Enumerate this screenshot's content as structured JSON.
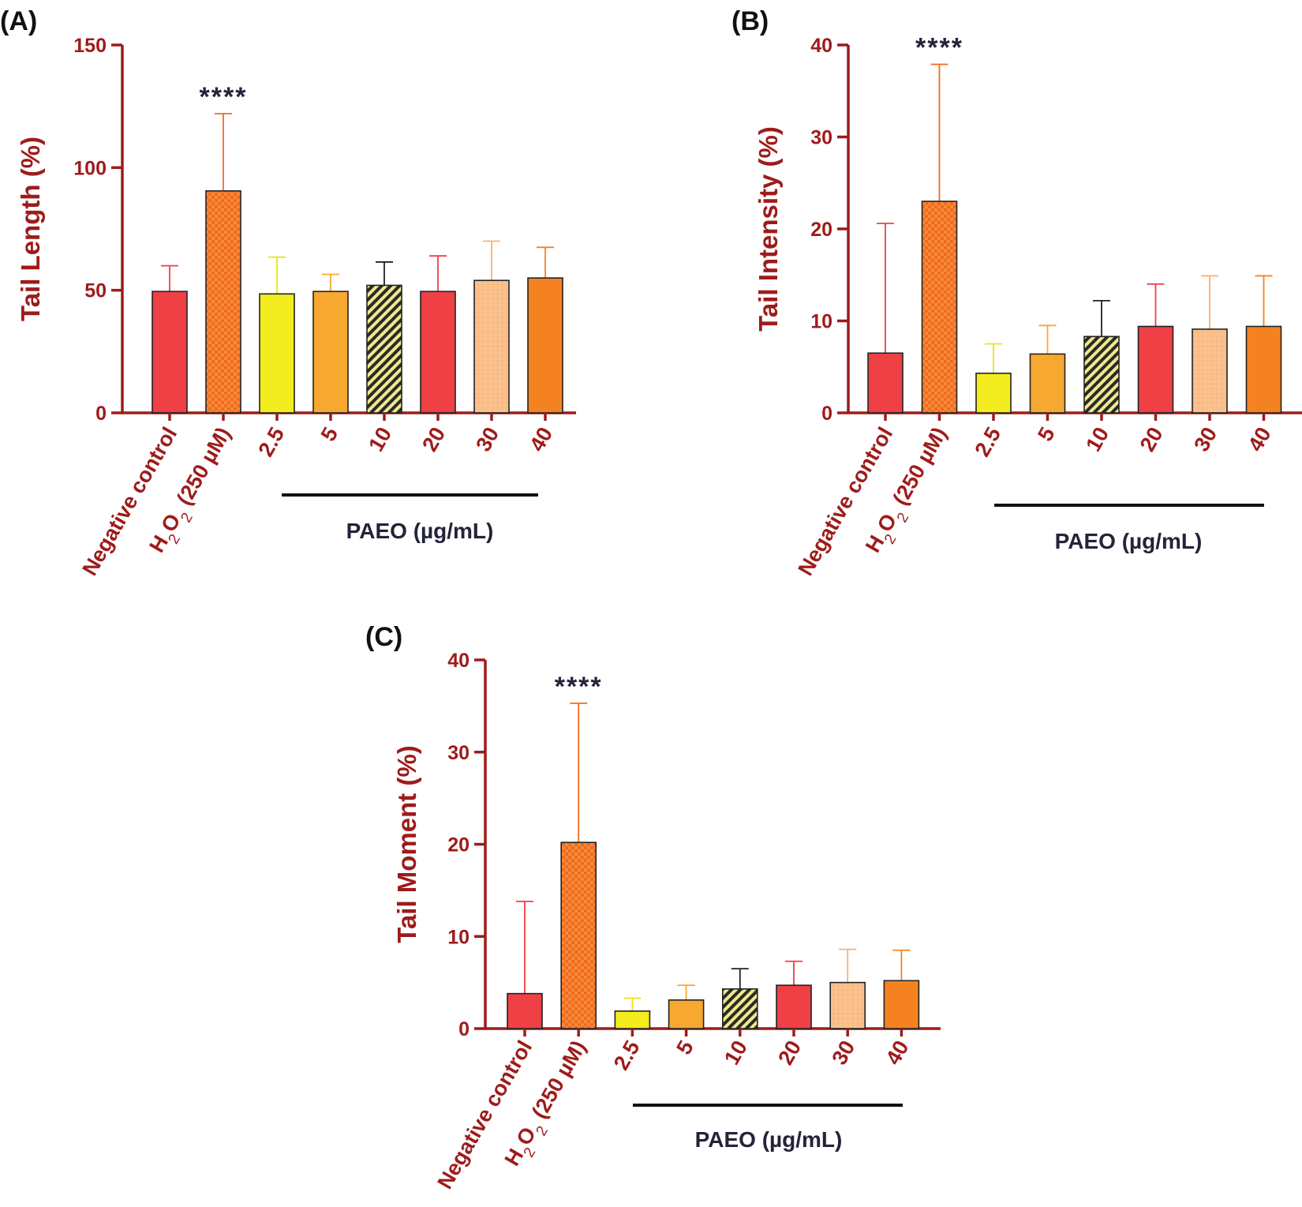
{
  "colors": {
    "axis": "#9e1b1b",
    "label_text": "#9e1b1b",
    "annotation": "#23233a",
    "red": "#ee4045",
    "dark_orange": "#f26b1d",
    "yellow": "#f3ec1f",
    "orange": "#f7a830",
    "hatch_fg": "#f1e98a",
    "hatch_bg": "#2a2a2a",
    "peach": "#fbc290",
    "deep_orange": "#f58220"
  },
  "chart_data": [
    {
      "type": "bar",
      "panel_label": "(A)",
      "ylabel": "Tail Length (%)",
      "ylim": [
        0,
        150
      ],
      "yticks": [
        "0",
        "50",
        "100",
        "150"
      ],
      "categories": [
        "Negative control",
        "H2O2 (250 µM)",
        "2.5",
        "5",
        "10",
        "20",
        "30",
        "40"
      ],
      "values": [
        49.5,
        90.5,
        48.5,
        49.5,
        52,
        49.5,
        54,
        55
      ],
      "errors": [
        10.5,
        31.5,
        15,
        7,
        9.5,
        14.5,
        16,
        12.5
      ],
      "significance": {
        "index": 1,
        "text": "****"
      },
      "group_label": "PAEO (µg/mL)"
    },
    {
      "type": "bar",
      "panel_label": "(B)",
      "ylabel": "Tail Intensity (%)",
      "ylim": [
        0,
        40
      ],
      "yticks": [
        "0",
        "10",
        "20",
        "30",
        "40"
      ],
      "categories": [
        "Negative control",
        "H2O2 (250 µM)",
        "2.5",
        "5",
        "10",
        "20",
        "30",
        "40"
      ],
      "values": [
        6.5,
        23,
        4.3,
        6.4,
        8.3,
        9.4,
        9.1,
        9.4
      ],
      "errors": [
        14.1,
        14.9,
        3.2,
        3.1,
        3.9,
        4.6,
        5.8,
        5.5
      ],
      "significance": {
        "index": 1,
        "text": "****"
      },
      "group_label": "PAEO (µg/mL)"
    },
    {
      "type": "bar",
      "panel_label": "(C)",
      "ylabel": "Tail Moment (%)",
      "ylim": [
        0,
        40
      ],
      "yticks": [
        "0",
        "10",
        "20",
        "30",
        "40"
      ],
      "categories": [
        "Negative control",
        "H2O2 (250 µM)",
        "2.5",
        "5",
        "10",
        "20",
        "30",
        "40"
      ],
      "values": [
        3.8,
        20.2,
        1.9,
        3.1,
        4.3,
        4.7,
        5.0,
        5.2
      ],
      "errors": [
        10.0,
        15.1,
        1.4,
        1.6,
        2.2,
        2.6,
        3.6,
        3.3
      ],
      "significance": {
        "index": 1,
        "text": "****"
      },
      "group_label": "PAEO (µg/mL)"
    }
  ],
  "bar_styles": [
    {
      "fill": "red",
      "pattern": "solid",
      "error_color": "#ee4045"
    },
    {
      "fill": "dark_orange",
      "pattern": "checker",
      "error_color": "#f26b1d"
    },
    {
      "fill": "yellow",
      "pattern": "solid",
      "error_color": "#e9e21c"
    },
    {
      "fill": "orange",
      "pattern": "solid",
      "error_color": "#f7a830"
    },
    {
      "fill": "hatch",
      "pattern": "hatch",
      "error_color": "#222222"
    },
    {
      "fill": "red",
      "pattern": "solid",
      "error_color": "#ee4045"
    },
    {
      "fill": "peach",
      "pattern": "grid",
      "error_color": "#fbb070"
    },
    {
      "fill": "deep_orange",
      "pattern": "solid",
      "error_color": "#f58220"
    }
  ]
}
